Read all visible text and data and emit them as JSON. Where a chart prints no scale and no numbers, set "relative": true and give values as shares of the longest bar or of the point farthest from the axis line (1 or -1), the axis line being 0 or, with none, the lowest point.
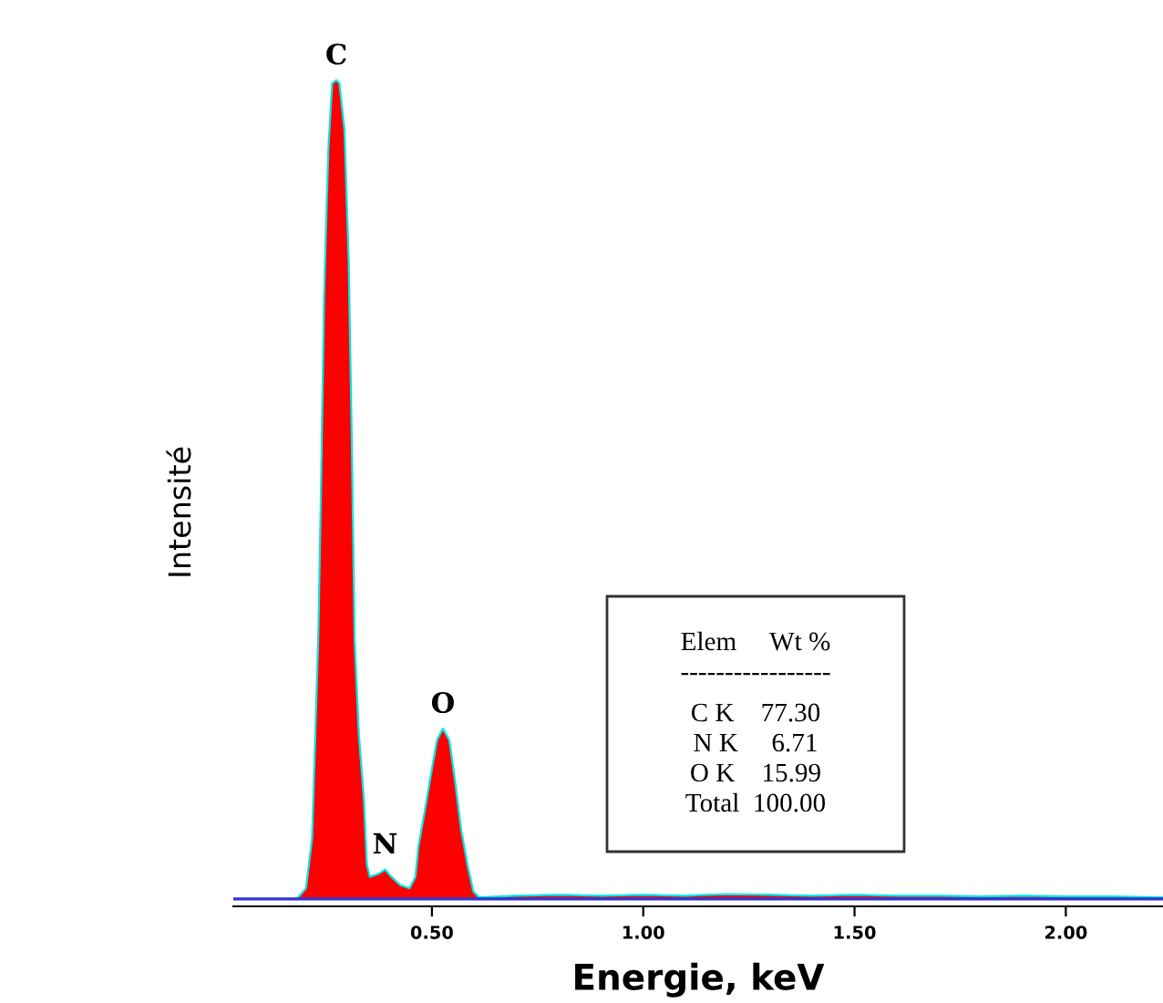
{
  "chart_data": {
    "type": "area",
    "relative": true,
    "xlabel": "Energie, keV",
    "ylabel": "Intensité",
    "xlim": [
      0.03,
      2.23
    ],
    "xticks": [
      {
        "value": 0.5,
        "label": "0.50"
      },
      {
        "value": 1.0,
        "label": "1.00"
      },
      {
        "value": 1.5,
        "label": "1.50"
      },
      {
        "value": 2.0,
        "label": "2.00"
      }
    ],
    "grid": false,
    "series": [
      {
        "color": "#ff0000",
        "x": [
          0.03,
          0.18,
          0.202,
          0.2165,
          0.231,
          0.238,
          0.245,
          0.255,
          0.264,
          0.274,
          0.281,
          0.293,
          0.303,
          0.31,
          0.317,
          0.327,
          0.339,
          0.346,
          0.353,
          0.375,
          0.389,
          0.404,
          0.425,
          0.447,
          0.461,
          0.468,
          0.483,
          0.497,
          0.512,
          0.526,
          0.541,
          0.555,
          0.569,
          0.584,
          0.598,
          0.612,
          0.7,
          0.8,
          0.9,
          1.0,
          1.1,
          1.2,
          1.3,
          1.4,
          1.5,
          1.6,
          1.7,
          1.8,
          1.9,
          2.0,
          2.1,
          2.23
        ],
        "values": [
          0.0,
          0.0,
          0.013,
          0.074,
          0.317,
          0.516,
          0.74,
          0.917,
          0.996,
          1.0,
          0.996,
          0.939,
          0.779,
          0.57,
          0.317,
          0.201,
          0.121,
          0.042,
          0.027,
          0.031,
          0.036,
          0.027,
          0.017,
          0.013,
          0.027,
          0.064,
          0.107,
          0.15,
          0.194,
          0.208,
          0.194,
          0.143,
          0.085,
          0.042,
          0.009,
          0.002,
          0.004,
          0.005,
          0.004,
          0.005,
          0.004,
          0.006,
          0.005,
          0.004,
          0.005,
          0.004,
          0.004,
          0.003,
          0.004,
          0.003,
          0.003,
          0.002
        ]
      },
      {
        "type": "line",
        "color": "#3333cc",
        "x": [
          0.03,
          2.23
        ],
        "values": [
          0.0,
          0.0
        ]
      }
    ],
    "annotations": [
      {
        "text": "C",
        "x": 0.274,
        "y": 1.0
      },
      {
        "text": "N",
        "x": 0.389,
        "y": 0.036
      },
      {
        "text": "O",
        "x": 0.526,
        "y": 0.208
      },
      "Elem     Wt %",
      "-----------------",
      "C K    77.30",
      "N K     6.71",
      "O K    15.99",
      "Total  100.00"
    ]
  }
}
